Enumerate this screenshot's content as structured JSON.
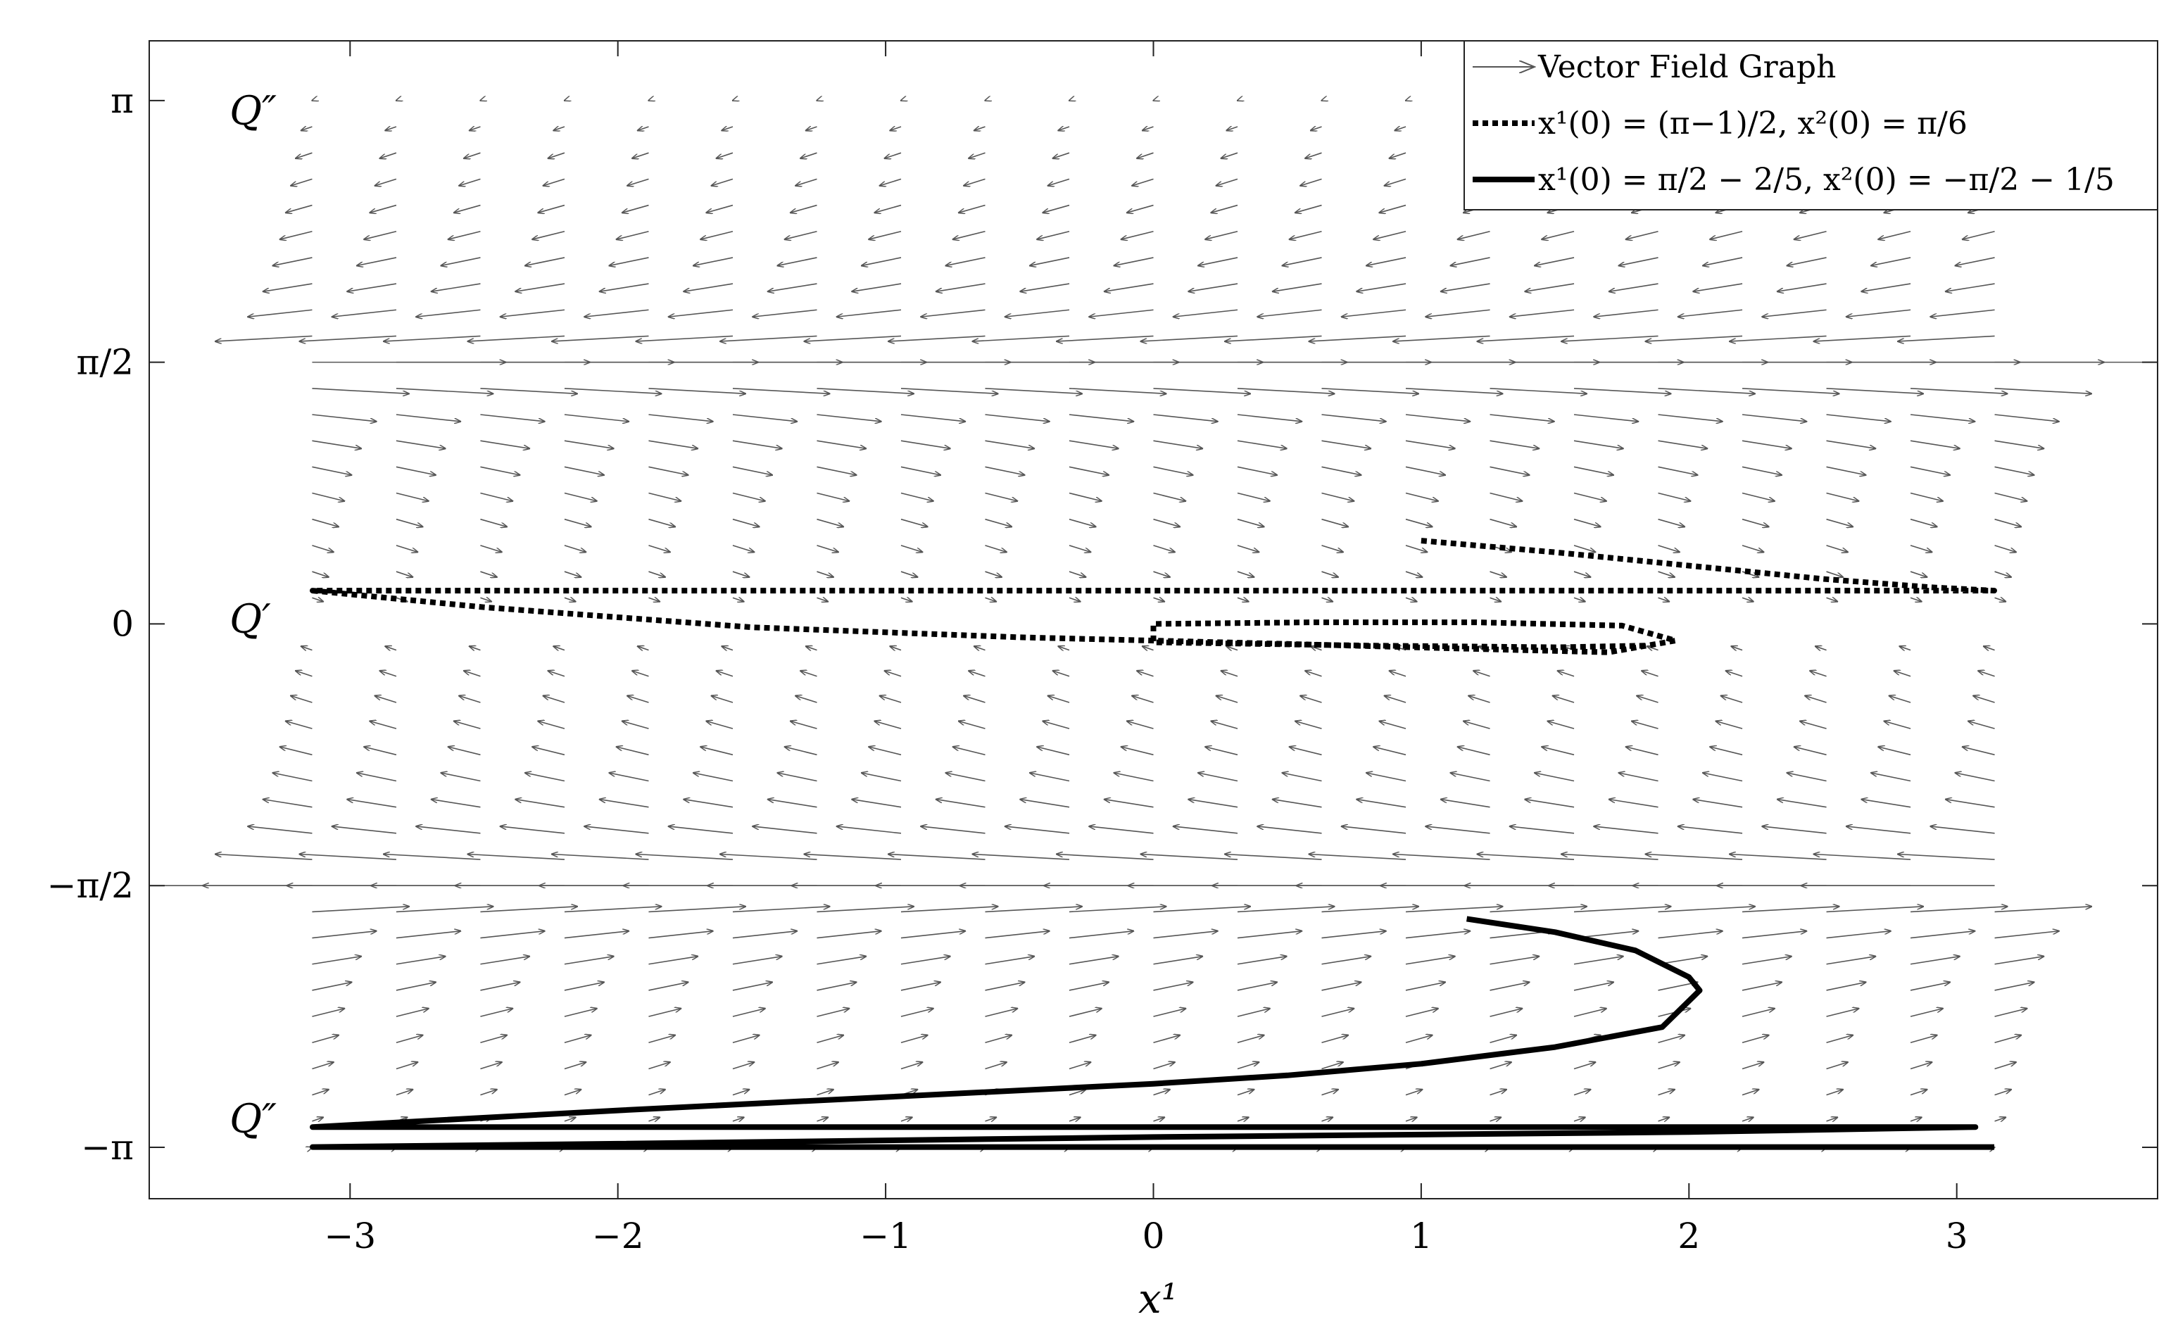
{
  "chart_data": {
    "type": "quiver",
    "xlabel": "x¹",
    "ylabel": "",
    "xlim": [
      -3.75,
      3.75
    ],
    "ylim": [
      -3.45,
      3.5
    ],
    "x_ticks": [
      {
        "value": -3,
        "label": "−3"
      },
      {
        "value": -2,
        "label": "−2"
      },
      {
        "value": -1,
        "label": "−1"
      },
      {
        "value": 0,
        "label": "0"
      },
      {
        "value": 1,
        "label": "1"
      },
      {
        "value": 2,
        "label": "2"
      },
      {
        "value": 3,
        "label": "3"
      }
    ],
    "y_ticks": [
      {
        "value": 3.14159,
        "label": "π"
      },
      {
        "value": 1.5708,
        "label": "π/2"
      },
      {
        "value": 0,
        "label": "0"
      },
      {
        "value": -1.5708,
        "label": "−π/2"
      },
      {
        "value": -3.14159,
        "label": "−π"
      }
    ],
    "annotations": [
      {
        "text": "Q″",
        "x": -3.45,
        "y": 3.0
      },
      {
        "text": "Q′",
        "x": -3.45,
        "y": -0.05
      },
      {
        "text": "Q″",
        "x": -3.45,
        "y": -3.05
      }
    ],
    "legend": {
      "position": "top-right",
      "entries": [
        {
          "label": "Vector Field Graph",
          "style": "arrow"
        },
        {
          "label": "x¹(0) = (π−1)/2, x²(0) = π/6",
          "style": "dotted"
        },
        {
          "label": "x¹(0) = π/2 − 2/5, x²(0) = −π/2 − 1/5",
          "style": "solid"
        }
      ]
    },
    "vector_field": {
      "x_range": [
        -3.14159,
        3.14159
      ],
      "y_range": [
        -3.14159,
        3.14159
      ],
      "nx": 21,
      "ny": 41,
      "u": "tan(x2)",
      "v": "-sin(x2)",
      "color": "#555555"
    },
    "series": [
      {
        "style": "dotted",
        "color": "#000000",
        "x": [
          1.0,
          1.5,
          2.0,
          2.5,
          2.9,
          3.14,
          3.1,
          2.0,
          1.0,
          0.0,
          -1.0,
          -2.0,
          -3.14,
          -2.5,
          -1.5,
          -0.5,
          0.5,
          1.2,
          1.7,
          1.95,
          1.75,
          1.2,
          0.6,
          0.0,
          0.0,
          0.8,
          1.5,
          1.85
        ],
        "y": [
          0.5,
          0.43,
          0.35,
          0.27,
          0.22,
          0.2,
          0.2,
          0.2,
          0.2,
          0.2,
          0.2,
          0.2,
          0.2,
          0.1,
          -0.02,
          -0.08,
          -0.12,
          -0.15,
          -0.17,
          -0.1,
          -0.01,
          0.01,
          0.01,
          0.0,
          -0.11,
          -0.13,
          -0.14,
          -0.13
        ]
      },
      {
        "style": "solid",
        "color": "#000000",
        "x": [
          1.17,
          1.5,
          1.8,
          2.0,
          2.04,
          1.9,
          1.5,
          1.0,
          0.5,
          0.0,
          -1.0,
          -2.0,
          -3.14,
          -2.0,
          0.0,
          2.0,
          3.07,
          2.0,
          0.0,
          -2.0,
          -3.14,
          0.0,
          3.14
        ],
        "y": [
          -1.77,
          -1.85,
          -1.96,
          -2.12,
          -2.2,
          -2.42,
          -2.54,
          -2.64,
          -2.71,
          -2.76,
          -2.84,
          -2.92,
          -3.02,
          -3.02,
          -3.02,
          -3.02,
          -3.02,
          -3.05,
          -3.08,
          -3.12,
          -3.14,
          -3.14,
          -3.14
        ]
      }
    ],
    "grid": false
  }
}
